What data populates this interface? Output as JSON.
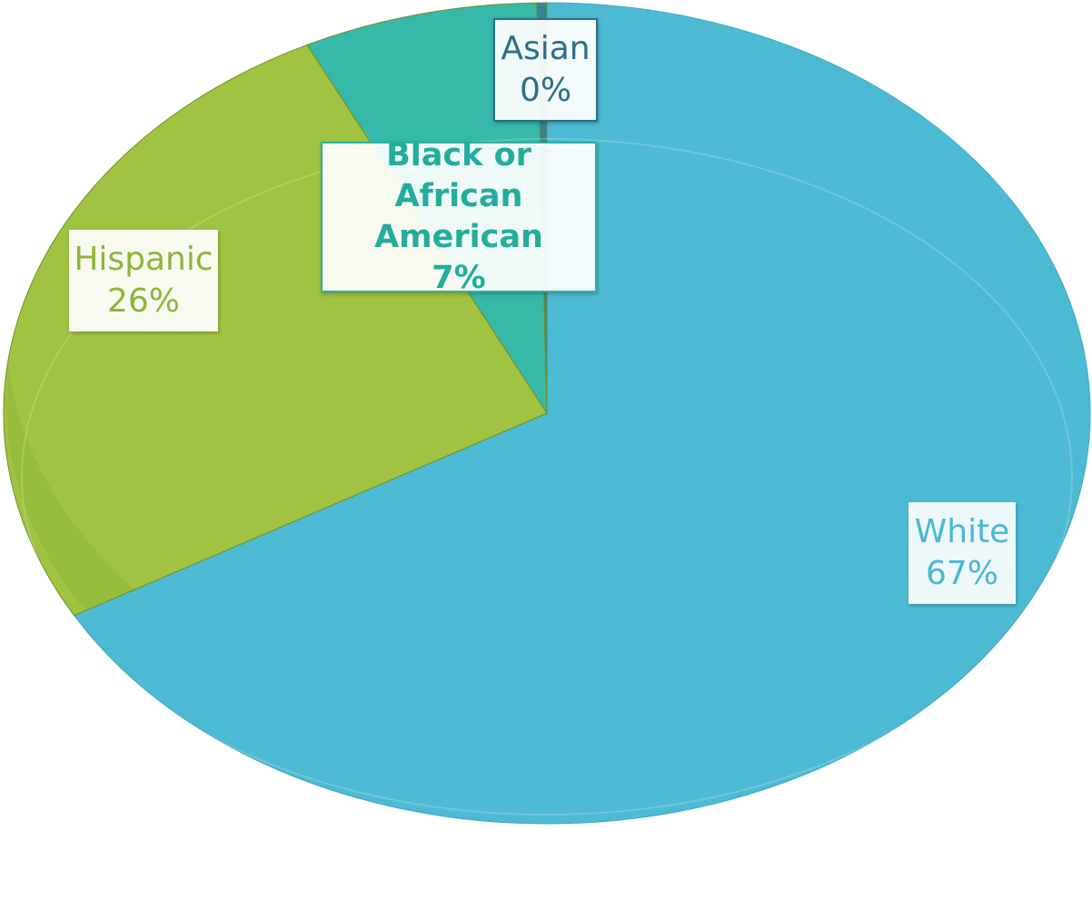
{
  "chart_data": {
    "type": "pie",
    "style": "3d",
    "categories": [
      "White",
      "Hispanic",
      "Black or African American",
      "Asian"
    ],
    "values": [
      67,
      26,
      7,
      0.3
    ],
    "data_labels": [
      {
        "name": "White",
        "percent": "67%"
      },
      {
        "name": "Hispanic",
        "percent": "26%"
      },
      {
        "name": "Black or African American",
        "percent": "7%"
      },
      {
        "name": "Asian",
        "percent": "0%"
      }
    ],
    "colors": {
      "White": "#4dbad3",
      "Hispanic": "#9bc037",
      "Black or African American": "#2bb5a3",
      "Asian": "#2a7d92"
    },
    "legend": "none",
    "title": ""
  }
}
